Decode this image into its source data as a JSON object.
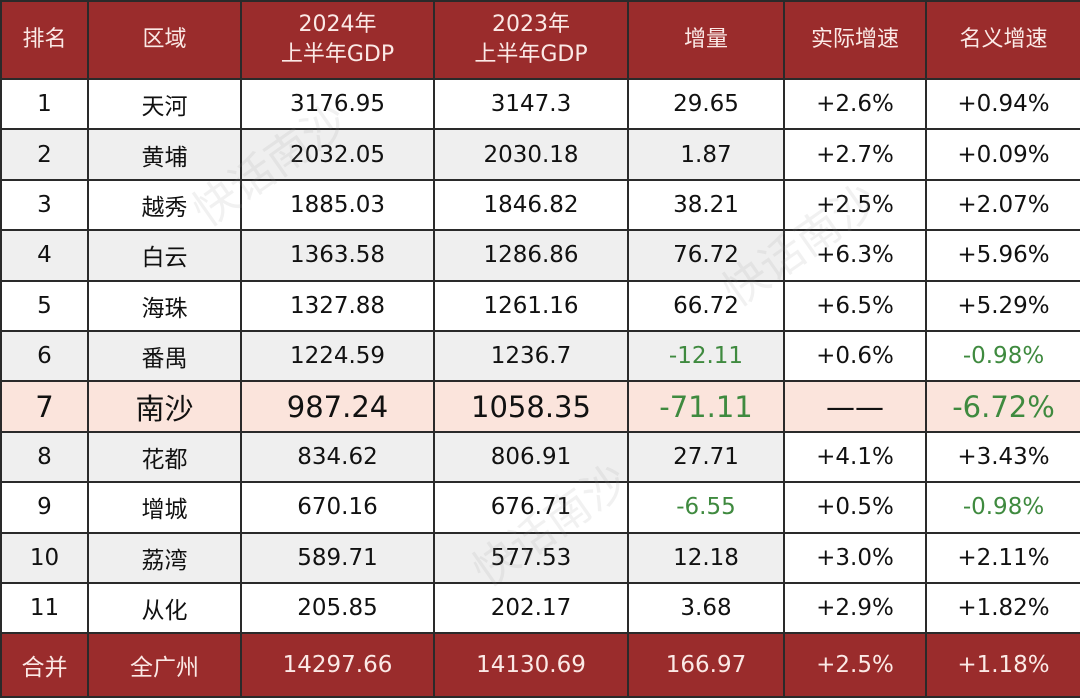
{
  "headers": {
    "rank": "排名",
    "region": "区域",
    "gdp2024_l1": "2024年",
    "gdp2024_l2": "上半年GDP",
    "gdp2023_l1": "2023年",
    "gdp2023_l2": "上半年GDP",
    "increase": "增量",
    "real_growth": "实际增速",
    "nominal_growth": "名义增速"
  },
  "rows": [
    {
      "rank": "1",
      "region": "天河",
      "gdp2024": "3176.95",
      "gdp2023": "3147.3",
      "increase": "29.65",
      "real": "+2.6%",
      "nominal": "+0.94%"
    },
    {
      "rank": "2",
      "region": "黄埔",
      "gdp2024": "2032.05",
      "gdp2023": "2030.18",
      "increase": "1.87",
      "real": "+2.7%",
      "nominal": "+0.09%"
    },
    {
      "rank": "3",
      "region": "越秀",
      "gdp2024": "1885.03",
      "gdp2023": "1846.82",
      "increase": "38.21",
      "real": "+2.5%",
      "nominal": "+2.07%"
    },
    {
      "rank": "4",
      "region": "白云",
      "gdp2024": "1363.58",
      "gdp2023": "1286.86",
      "increase": "76.72",
      "real": "+6.3%",
      "nominal": "+5.96%"
    },
    {
      "rank": "5",
      "region": "海珠",
      "gdp2024": "1327.88",
      "gdp2023": "1261.16",
      "increase": "66.72",
      "real": "+6.5%",
      "nominal": "+5.29%"
    },
    {
      "rank": "6",
      "region": "番禺",
      "gdp2024": "1224.59",
      "gdp2023": "1236.7",
      "increase": "-12.11",
      "real": "+0.6%",
      "nominal": "-0.98%"
    },
    {
      "rank": "7",
      "region": "南沙",
      "gdp2024": "987.24",
      "gdp2023": "1058.35",
      "increase": "-71.11",
      "real": "——",
      "nominal": "-6.72%"
    },
    {
      "rank": "8",
      "region": "花都",
      "gdp2024": "834.62",
      "gdp2023": "806.91",
      "increase": "27.71",
      "real": "+4.1%",
      "nominal": "+3.43%"
    },
    {
      "rank": "9",
      "region": "增城",
      "gdp2024": "670.16",
      "gdp2023": "676.71",
      "increase": "-6.55",
      "real": "+0.5%",
      "nominal": "-0.98%"
    },
    {
      "rank": "10",
      "region": "荔湾",
      "gdp2024": "589.71",
      "gdp2023": "577.53",
      "increase": "12.18",
      "real": "+3.0%",
      "nominal": "+2.11%"
    },
    {
      "rank": "11",
      "region": "从化",
      "gdp2024": "205.85",
      "gdp2023": "202.17",
      "increase": "3.68",
      "real": "+2.9%",
      "nominal": "+1.82%"
    }
  ],
  "total": {
    "rank": "合并",
    "region": "全广州",
    "gdp2024": "14297.66",
    "gdp2023": "14130.69",
    "increase": "166.97",
    "real": "+2.5%",
    "nominal": "+1.18%"
  },
  "watermark": "快话南沙",
  "colors": {
    "header_bg": "#9a2c2c",
    "highlight_bg": "#fbe4dc",
    "negative": "#3f8a3f",
    "stripe": "#efefef"
  }
}
